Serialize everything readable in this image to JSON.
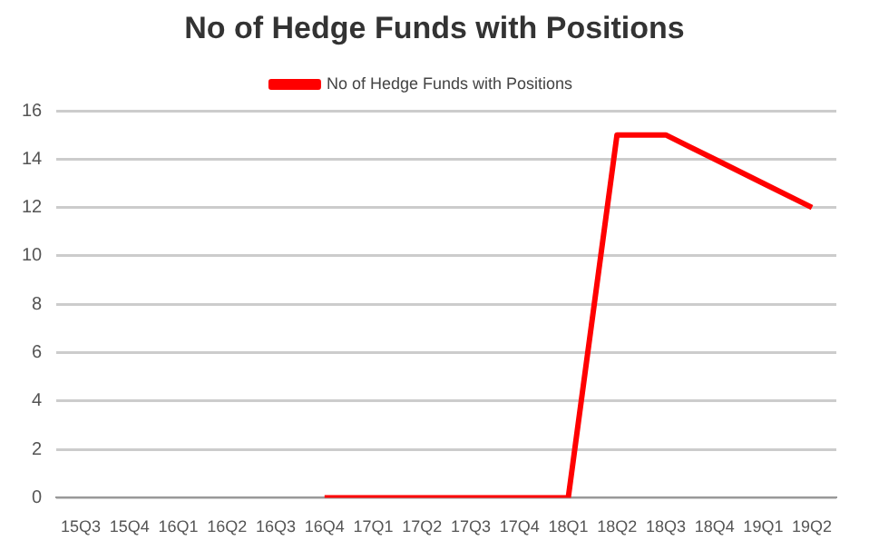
{
  "chart_data": {
    "type": "line",
    "title": "No of Hedge Funds with Positions",
    "categories": [
      "15Q3",
      "15Q4",
      "16Q1",
      "16Q2",
      "16Q3",
      "16Q4",
      "17Q1",
      "17Q2",
      "17Q3",
      "17Q4",
      "18Q1",
      "18Q2",
      "18Q3",
      "18Q4",
      "19Q1",
      "19Q2"
    ],
    "series": [
      {
        "name": "No of Hedge Funds with Positions",
        "color": "#ff0000",
        "values": [
          null,
          null,
          null,
          null,
          null,
          0,
          0,
          0,
          0,
          0,
          0,
          15,
          15,
          14,
          13,
          12
        ]
      }
    ],
    "ylim": [
      0,
      16
    ],
    "yticks": [
      0,
      2,
      4,
      6,
      8,
      10,
      12,
      14,
      16
    ],
    "grid": "y",
    "legend": "top",
    "marker": "none"
  }
}
